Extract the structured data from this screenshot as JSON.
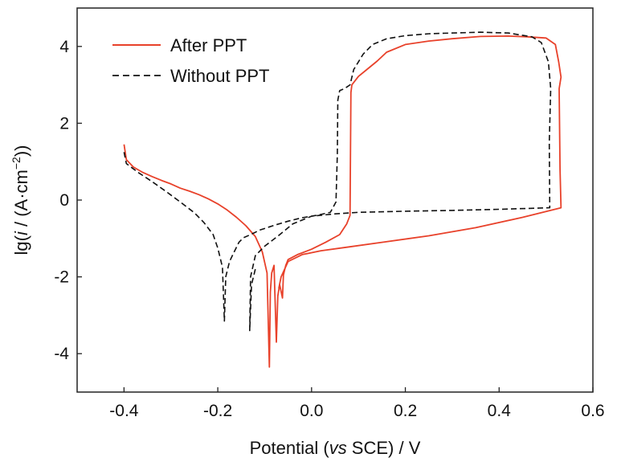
{
  "chart_data": {
    "type": "line",
    "xlabel": {
      "prefix": "Potential (",
      "italic": "vs",
      "suffix": " SCE) / V"
    },
    "ylabel": {
      "prefix": "lg(",
      "italic": "i",
      "middle": " / (A·cm",
      "sup": "−2",
      "suffix": "))"
    },
    "xlim": [
      -0.5,
      0.6
    ],
    "ylim": [
      -5,
      5
    ],
    "xticks": [
      -0.4,
      -0.2,
      0.0,
      0.2,
      0.4,
      0.6
    ],
    "xtick_labels": [
      "-0.4",
      "-0.2",
      "0.0",
      "0.2",
      "0.4",
      "0.6"
    ],
    "yticks": [
      -4,
      -2,
      0,
      2,
      4
    ],
    "ytick_labels": [
      "-4",
      "-2",
      "0",
      "2",
      "4"
    ],
    "grid": false,
    "legend_position": "top-left",
    "series": [
      {
        "name": "After PPT",
        "color": "#e8412a",
        "dash": "solid",
        "points": [
          [
            -0.4,
            1.45
          ],
          [
            -0.395,
            1.05
          ],
          [
            -0.38,
            0.86
          ],
          [
            -0.36,
            0.72
          ],
          [
            -0.34,
            0.61
          ],
          [
            -0.32,
            0.51
          ],
          [
            -0.3,
            0.42
          ],
          [
            -0.28,
            0.31
          ],
          [
            -0.26,
            0.23
          ],
          [
            -0.24,
            0.14
          ],
          [
            -0.22,
            0.03
          ],
          [
            -0.2,
            -0.1
          ],
          [
            -0.18,
            -0.26
          ],
          [
            -0.16,
            -0.45
          ],
          [
            -0.14,
            -0.67
          ],
          [
            -0.12,
            -0.95
          ],
          [
            -0.105,
            -1.35
          ],
          [
            -0.095,
            -1.9
          ],
          [
            -0.09,
            -4.35
          ],
          [
            -0.088,
            -2.4
          ],
          [
            -0.085,
            -1.9
          ],
          [
            -0.08,
            -1.7
          ],
          [
            -0.075,
            -3.7
          ],
          [
            -0.072,
            -2.5
          ],
          [
            -0.068,
            -2.2
          ],
          [
            -0.062,
            -2.55
          ],
          [
            -0.06,
            -1.95
          ],
          [
            -0.055,
            -1.7
          ],
          [
            -0.05,
            -1.55
          ],
          [
            -0.03,
            -1.42
          ],
          [
            0.0,
            -1.28
          ],
          [
            0.03,
            -1.1
          ],
          [
            0.06,
            -0.9
          ],
          [
            0.075,
            -0.62
          ],
          [
            0.082,
            -0.4
          ],
          [
            0.084,
            2.8
          ],
          [
            0.086,
            3.0
          ],
          [
            0.1,
            3.22
          ],
          [
            0.12,
            3.42
          ],
          [
            0.14,
            3.62
          ],
          [
            0.16,
            3.85
          ],
          [
            0.2,
            4.05
          ],
          [
            0.25,
            4.14
          ],
          [
            0.3,
            4.2
          ],
          [
            0.36,
            4.26
          ],
          [
            0.42,
            4.27
          ],
          [
            0.46,
            4.25
          ],
          [
            0.5,
            4.22
          ],
          [
            0.52,
            4.05
          ],
          [
            0.527,
            3.6
          ],
          [
            0.532,
            3.2
          ],
          [
            0.528,
            2.9
          ],
          [
            0.53,
            0.8
          ],
          [
            0.532,
            -0.2
          ],
          [
            0.45,
            -0.45
          ],
          [
            0.35,
            -0.72
          ],
          [
            0.25,
            -0.93
          ],
          [
            0.15,
            -1.1
          ],
          [
            0.08,
            -1.22
          ],
          [
            0.02,
            -1.32
          ],
          [
            -0.02,
            -1.42
          ],
          [
            -0.05,
            -1.6
          ],
          [
            -0.065,
            -2.0
          ],
          [
            -0.07,
            -2.3
          ]
        ]
      },
      {
        "name": "Without PPT",
        "color": "#111111",
        "dash": "dashed",
        "points": [
          [
            -0.4,
            1.25
          ],
          [
            -0.395,
            0.95
          ],
          [
            -0.37,
            0.72
          ],
          [
            -0.34,
            0.48
          ],
          [
            -0.31,
            0.22
          ],
          [
            -0.28,
            -0.05
          ],
          [
            -0.25,
            -0.33
          ],
          [
            -0.23,
            -0.58
          ],
          [
            -0.21,
            -0.9
          ],
          [
            -0.2,
            -1.25
          ],
          [
            -0.19,
            -1.75
          ],
          [
            -0.186,
            -3.15
          ],
          [
            -0.183,
            -2.0
          ],
          [
            -0.175,
            -1.6
          ],
          [
            -0.165,
            -1.35
          ],
          [
            -0.155,
            -1.1
          ],
          [
            -0.145,
            -0.98
          ],
          [
            -0.13,
            -0.9
          ],
          [
            -0.11,
            -0.78
          ],
          [
            -0.08,
            -0.66
          ],
          [
            -0.05,
            -0.55
          ],
          [
            -0.02,
            -0.46
          ],
          [
            0.01,
            -0.4
          ],
          [
            0.04,
            -0.32
          ],
          [
            0.052,
            -0.05
          ],
          [
            0.055,
            1.2
          ],
          [
            0.056,
            2.6
          ],
          [
            0.06,
            2.85
          ],
          [
            0.07,
            2.9
          ],
          [
            0.082,
            3.0
          ],
          [
            0.09,
            3.4
          ],
          [
            0.1,
            3.6
          ],
          [
            0.11,
            3.8
          ],
          [
            0.13,
            4.05
          ],
          [
            0.16,
            4.2
          ],
          [
            0.2,
            4.28
          ],
          [
            0.25,
            4.33
          ],
          [
            0.3,
            4.35
          ],
          [
            0.36,
            4.37
          ],
          [
            0.42,
            4.35
          ],
          [
            0.47,
            4.25
          ],
          [
            0.49,
            4.1
          ],
          [
            0.505,
            3.6
          ],
          [
            0.51,
            2.9
          ],
          [
            0.507,
            1.5
          ],
          [
            0.508,
            -0.2
          ],
          [
            0.4,
            -0.24
          ],
          [
            0.3,
            -0.27
          ],
          [
            0.2,
            -0.29
          ],
          [
            0.1,
            -0.32
          ],
          [
            0.05,
            -0.36
          ],
          [
            0.0,
            -0.42
          ],
          [
            -0.04,
            -0.62
          ],
          [
            -0.07,
            -0.92
          ],
          [
            -0.1,
            -1.2
          ],
          [
            -0.12,
            -1.45
          ],
          [
            -0.13,
            -2.0
          ],
          [
            -0.132,
            -3.4
          ],
          [
            -0.128,
            -2.2
          ],
          [
            -0.12,
            -1.8
          ]
        ]
      }
    ]
  }
}
